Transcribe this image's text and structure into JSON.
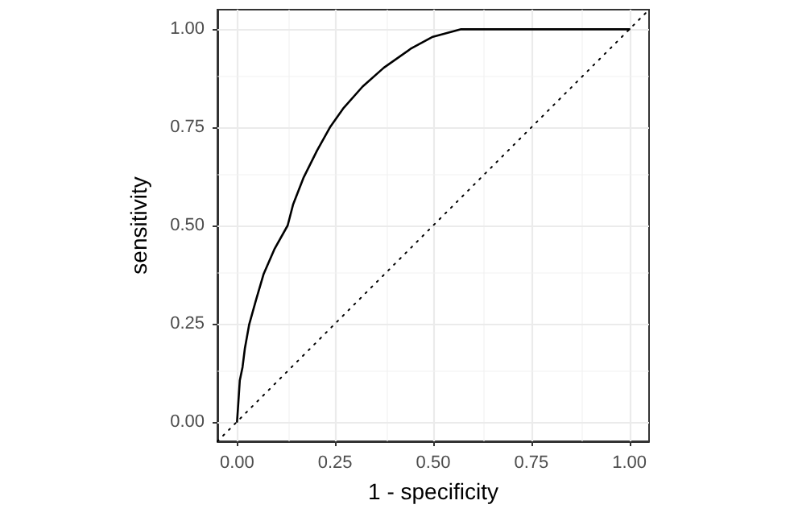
{
  "chart_data": {
    "type": "line",
    "xlabel": "1 - specificity",
    "ylabel": "sensitivity",
    "xlim": [
      -0.05,
      1.05
    ],
    "ylim": [
      -0.05,
      1.05
    ],
    "xticks": [
      {
        "value": 0,
        "label": "0.00"
      },
      {
        "value": 0.25,
        "label": "0.25"
      },
      {
        "value": 0.5,
        "label": "0.50"
      },
      {
        "value": 0.75,
        "label": "0.75"
      },
      {
        "value": 1,
        "label": "1.00"
      }
    ],
    "yticks": [
      {
        "value": 0,
        "label": "0.00"
      },
      {
        "value": 0.25,
        "label": "0.25"
      },
      {
        "value": 0.5,
        "label": "0.50"
      },
      {
        "value": 0.75,
        "label": "0.75"
      },
      {
        "value": 1,
        "label": "1.00"
      }
    ],
    "grid": true,
    "marker": "none",
    "series": [
      {
        "color": "#000000",
        "line_style": "solid",
        "x": [
          0,
          0.003,
          0.007,
          0.014,
          0.02,
          0.031,
          0.048,
          0.068,
          0.095,
          0.129,
          0.143,
          0.17,
          0.204,
          0.238,
          0.272,
          0.32,
          0.374,
          0.442,
          0.497,
          0.571,
          1
        ],
        "values": [
          0,
          0.044,
          0.105,
          0.139,
          0.187,
          0.248,
          0.309,
          0.377,
          0.439,
          0.5,
          0.554,
          0.623,
          0.691,
          0.752,
          0.8,
          0.854,
          0.902,
          0.95,
          0.98,
          1,
          1
        ]
      },
      {
        "color": "#000000",
        "line_style": "dotted",
        "x": [
          -0.05,
          1.05
        ],
        "values": [
          -0.05,
          1.05
        ]
      }
    ]
  }
}
